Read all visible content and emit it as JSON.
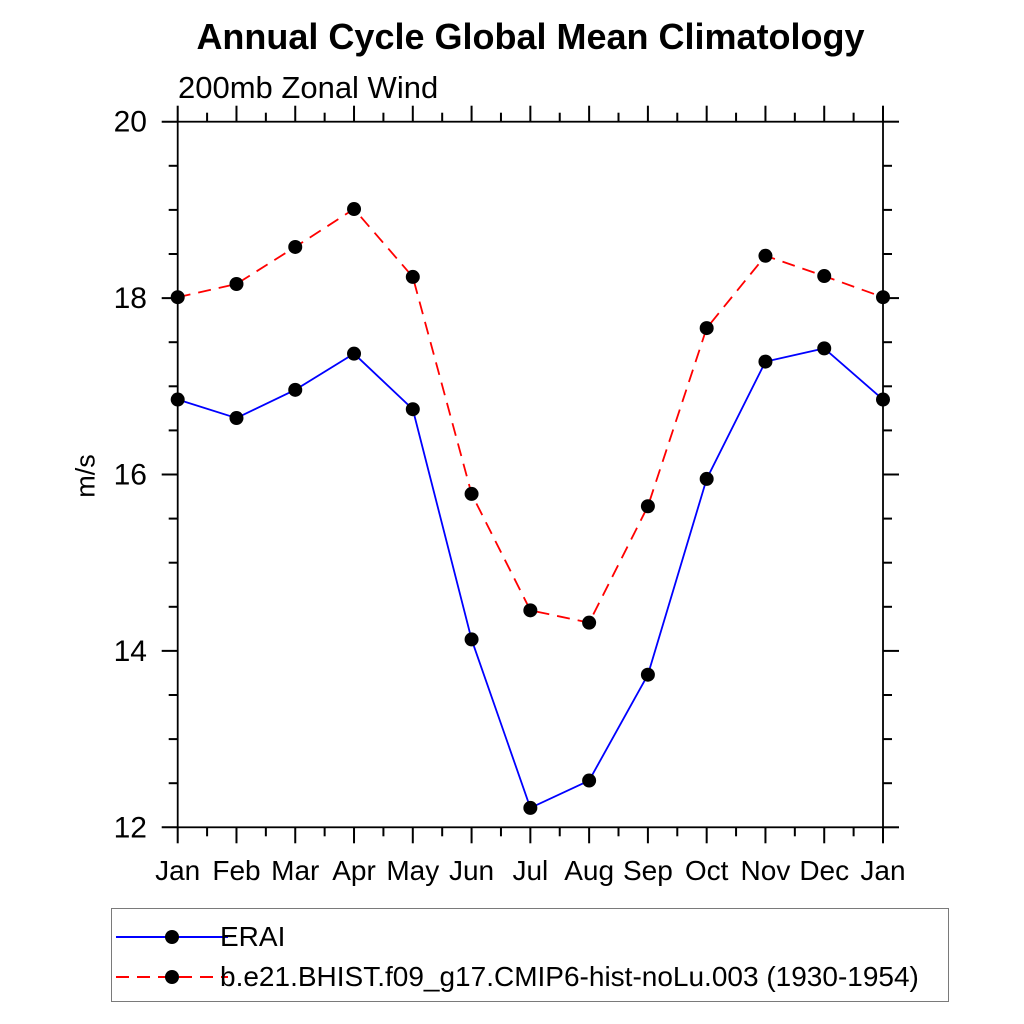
{
  "page": {
    "background": "#ffffff"
  },
  "chart_data": {
    "type": "line",
    "title": "Annual Cycle Global Mean Climatology",
    "subtitle": "200mb Zonal Wind",
    "xlabel": "",
    "ylabel": "m/s",
    "categories": [
      "Jan",
      "Feb",
      "Mar",
      "Apr",
      "May",
      "Jun",
      "Jul",
      "Aug",
      "Sep",
      "Oct",
      "Nov",
      "Dec",
      "Jan"
    ],
    "ylim": [
      12,
      20
    ],
    "y_major_ticks": [
      12,
      14,
      16,
      18,
      20
    ],
    "y_minor_step": 0.5,
    "x_minor_step": 0.5,
    "grid": false,
    "legend_position": "below-plot-box",
    "frame_color": "#000000",
    "marker": "filled-circle",
    "marker_color": "#000000",
    "series": [
      {
        "name": "ERAI",
        "color": "#0000ff",
        "style": "solid",
        "values": [
          16.85,
          16.64,
          16.96,
          17.37,
          16.74,
          14.13,
          12.22,
          12.53,
          13.73,
          15.95,
          17.28,
          17.43,
          16.85
        ]
      },
      {
        "name": "b.e21.BHIST.f09_g17.CMIP6-hist-noLu.003 (1930-1954)",
        "color": "#ff0000",
        "style": "dashed",
        "values": [
          18.01,
          18.16,
          18.58,
          19.01,
          18.24,
          15.78,
          14.46,
          14.32,
          15.64,
          17.66,
          18.48,
          18.25,
          18.01
        ]
      }
    ]
  }
}
